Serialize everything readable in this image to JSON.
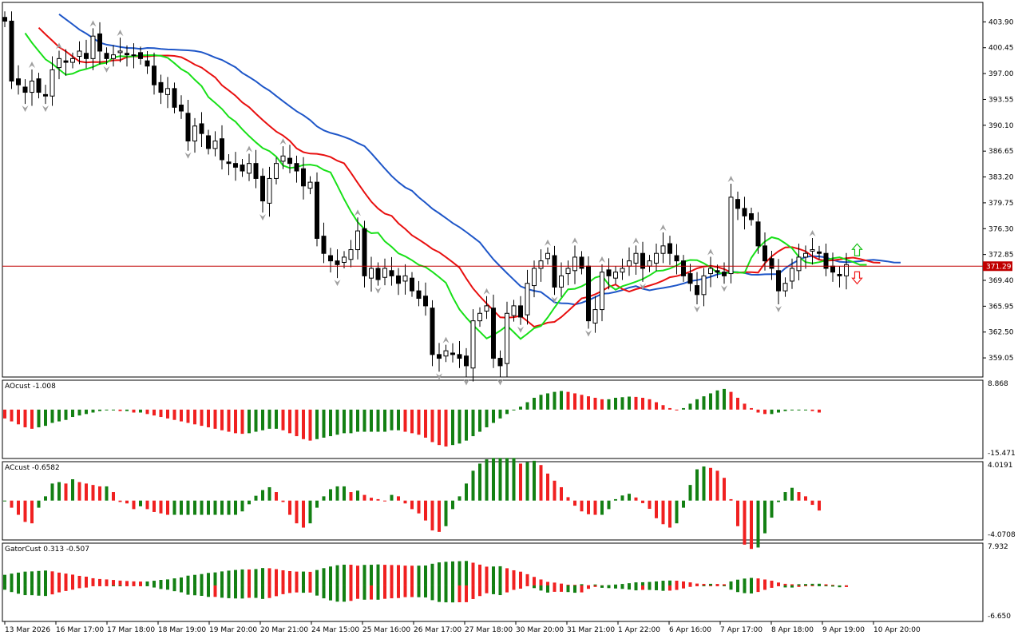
{
  "colors": {
    "bg": "#ffffff",
    "frame": "#000000",
    "bull": "#ffffff",
    "bear": "#000000",
    "alligator_jaw": "#1e56c8",
    "alligator_teeth": "#e81010",
    "alligator_lips": "#18e018",
    "hist_up": "#138013",
    "hist_down": "#f02020",
    "price_line": "#c00000",
    "price_badge": "#c00000",
    "fractal": "#a0a0a0",
    "arrow_up": "#18c018",
    "arrow_down": "#f02020"
  },
  "main_panel": {
    "price_scale": [
      "403.90",
      "400.45",
      "397.00",
      "393.55",
      "390.10",
      "386.65",
      "383.20",
      "379.75",
      "376.30",
      "372.85",
      "369.40",
      "365.95",
      "362.50",
      "359.05"
    ],
    "current_price": "371.29",
    "ymin": 356.5,
    "ymax": 406.5
  },
  "ao_panel": {
    "label": "AOcust -1.008",
    "scale_top": "8.868",
    "scale_bottom": "-15.471"
  },
  "ac_panel": {
    "label": "ACcust -0.6582",
    "scale_top": "4.0191",
    "scale_bottom": "-4.0708"
  },
  "gator_panel": {
    "label": "GatorCust 0.313 -0.507",
    "scale_top": "7.932",
    "scale_bottom": "-6.650"
  },
  "time_axis": [
    "13 Mar 2026",
    "16 Mar 17:00",
    "17 Mar 18:00",
    "18 Mar 19:00",
    "19 Mar 20:00",
    "20 Mar 21:00",
    "24 Mar 15:00",
    "25 Mar 16:00",
    "26 Mar 17:00",
    "27 Mar 18:00",
    "30 Mar 20:00",
    "31 Mar 21:00",
    "1 Apr 22:00",
    "6 Apr 16:00",
    "7 Apr 17:00",
    "8 Apr 18:00",
    "9 Apr 19:00",
    "10 Apr 20:00"
  ],
  "chart_data": {
    "type": "candlestick",
    "close": [
      404,
      396,
      395.5,
      394.5,
      396,
      394.5,
      394,
      397.5,
      399,
      398.5,
      399,
      400,
      399,
      402,
      400,
      399,
      399.5,
      400,
      399.5,
      399.5,
      399,
      398,
      395.5,
      394.5,
      395,
      392.5,
      392,
      388,
      390,
      389,
      387,
      388,
      385.5,
      385,
      384.5,
      384,
      385,
      383,
      380,
      383,
      385,
      386,
      385,
      384,
      382,
      382.5,
      375,
      373,
      372,
      371.5,
      372.5,
      373.5,
      376,
      370,
      371,
      369.5,
      371,
      370,
      369,
      370,
      368,
      367,
      366,
      359.5,
      359,
      360,
      359.5,
      359,
      358,
      364,
      365,
      366,
      359,
      358,
      365,
      366,
      364.5,
      369,
      371,
      372,
      373,
      368.5,
      370,
      371,
      372.5,
      371,
      364,
      365.5,
      370.5,
      370,
      370.5,
      371,
      372,
      373,
      371,
      372,
      373,
      374,
      373,
      372,
      370,
      369,
      367.5,
      370,
      371,
      370.5,
      370,
      380.5,
      379,
      378,
      377.5,
      374,
      372,
      371,
      368,
      369,
      371,
      372.5,
      373,
      373.5,
      373,
      371,
      370.5,
      370,
      371.5
    ],
    "alligator_jaw_start": 405,
    "alligator_teeth_start": 403,
    "alligator_lips_start": 402,
    "ao_hist": [
      -3,
      -4,
      -5,
      -6,
      -6.5,
      -6,
      -5.5,
      -4.5,
      -4,
      -3.5,
      -2.5,
      -2,
      -1.5,
      -1,
      -0.5,
      0,
      0,
      -0.5,
      -0.5,
      -1,
      -1,
      -1.5,
      -2,
      -2.5,
      -3,
      -3.5,
      -4,
      -4.5,
      -5,
      -5.5,
      -6,
      -6.5,
      -7,
      -7.5,
      -8,
      -8.2,
      -8,
      -7.5,
      -7,
      -6.5,
      -6.5,
      -7,
      -8,
      -9,
      -10,
      -10.5,
      -10,
      -9.5,
      -9,
      -8.5,
      -8,
      -8,
      -7.5,
      -7.5,
      -7.5,
      -7.5,
      -7.5,
      -7,
      -7,
      -7.5,
      -8,
      -8.5,
      -9.5,
      -11,
      -12,
      -12.5,
      -12,
      -11.5,
      -10.5,
      -9,
      -7.5,
      -6,
      -4.5,
      -3,
      -1.5,
      0,
      1,
      2.5,
      4,
      5,
      5.5,
      6,
      6.3,
      6,
      5.5,
      5,
      4.5,
      4,
      3.5,
      3.5,
      4,
      4.2,
      4.4,
      4.3,
      4,
      3.5,
      2.5,
      1.5,
      0.5,
      0,
      0.5,
      2,
      3.5,
      4.5,
      5.5,
      6.5,
      7,
      6,
      4,
      2,
      0.5,
      -1,
      -1.5,
      -1.5,
      -1,
      -0.5,
      0,
      0,
      0,
      -0.5,
      -1
    ]
  }
}
